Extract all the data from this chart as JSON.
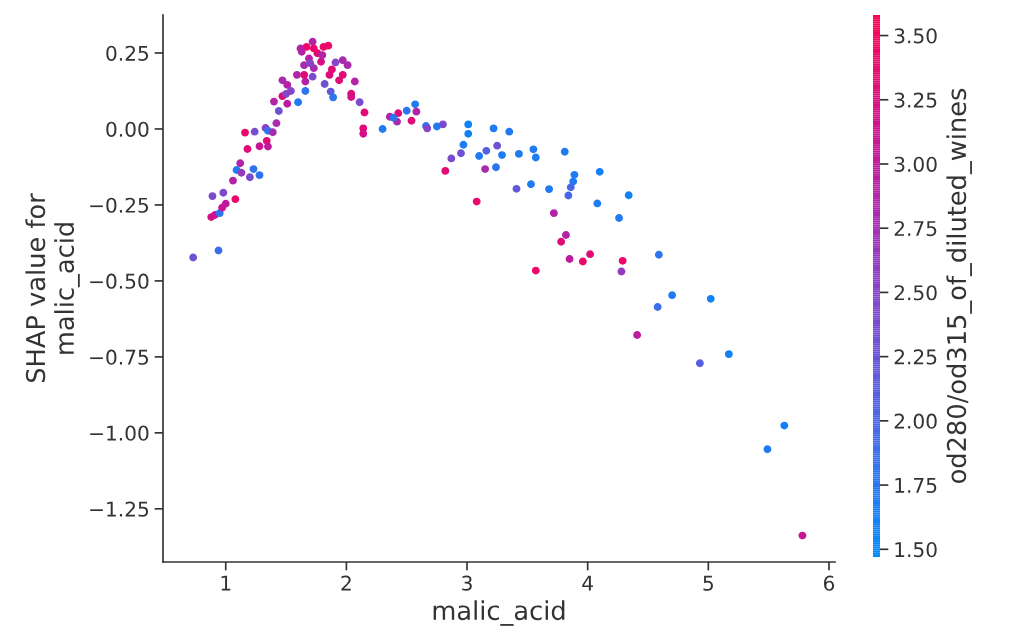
{
  "chart_data": {
    "type": "scatter",
    "xlabel": "malic_acid",
    "ylabel": "SHAP value for\nmalic_acid",
    "clabel": "od280/od315_of_diluted_wines",
    "x": [
      0.73,
      0.94,
      0.88,
      0.91,
      0.95,
      0.97,
      1.0,
      1.08,
      0.89,
      0.98,
      1.06,
      1.09,
      1.12,
      1.13,
      1.2,
      1.23,
      1.28,
      1.18,
      1.16,
      1.24,
      1.28,
      1.33,
      1.35,
      1.34,
      1.35,
      1.39,
      1.42,
      1.44,
      1.4,
      1.47,
      1.51,
      1.5,
      1.6,
      1.47,
      1.51,
      1.54,
      1.59,
      1.66,
      1.66,
      1.72,
      1.65,
      1.65,
      1.62,
      1.67,
      1.72,
      1.69,
      1.76,
      1.81,
      1.85,
      1.79,
      1.73,
      1.82,
      1.87,
      1.89,
      1.86,
      1.88,
      1.91,
      1.97,
      2.01,
      1.97,
      1.94,
      2.07,
      2.04,
      2.04,
      2.11,
      2.15,
      2.14,
      2.14,
      2.3,
      2.36,
      2.43,
      2.42,
      2.39,
      1.63,
      1.73,
      1.8,
      1.7,
      2.5,
      2.57,
      2.58,
      2.54,
      2.66,
      2.67,
      2.75,
      2.8,
      3.01,
      3.01,
      2.97,
      2.95,
      2.87,
      2.82,
      3.1,
      3.16,
      3.25,
      3.29,
      3.15,
      3.24,
      3.22,
      3.35,
      3.08,
      3.43,
      3.41,
      3.55,
      3.57,
      3.53,
      3.68,
      3.72,
      3.81,
      3.82,
      3.78,
      3.85,
      3.89,
      3.88,
      3.86,
      3.84,
      3.96,
      4.02,
      3.57,
      4.1,
      4.08,
      4.34,
      4.26,
      4.29,
      4.28,
      4.59,
      4.7,
      4.58,
      5.02,
      4.41,
      5.17,
      4.93,
      5.63,
      5.49,
      5.78
    ],
    "values": [
      -0.423,
      -0.4,
      -0.29,
      -0.283,
      -0.277,
      -0.259,
      -0.246,
      -0.231,
      -0.221,
      -0.21,
      -0.17,
      -0.135,
      -0.113,
      -0.144,
      -0.159,
      -0.132,
      -0.152,
      -0.066,
      -0.012,
      -0.009,
      -0.057,
      0.003,
      -0.006,
      -0.039,
      -0.058,
      -0.011,
      0.019,
      0.059,
      0.09,
      0.108,
      0.083,
      0.115,
      0.088,
      0.16,
      0.145,
      0.125,
      0.178,
      0.125,
      0.156,
      0.172,
      0.178,
      0.21,
      0.265,
      0.27,
      0.287,
      0.232,
      0.249,
      0.27,
      0.274,
      0.221,
      0.2,
      0.148,
      0.123,
      0.104,
      0.178,
      0.196,
      0.219,
      0.226,
      0.21,
      0.178,
      0.16,
      0.156,
      0.116,
      0.105,
      0.088,
      0.054,
      0.002,
      -0.016,
      0.0,
      0.04,
      0.052,
      0.024,
      0.037,
      0.254,
      0.265,
      0.243,
      0.216,
      0.06,
      0.081,
      0.057,
      0.027,
      0.01,
      0.002,
      0.008,
      0.015,
      0.015,
      -0.016,
      -0.052,
      -0.08,
      -0.097,
      -0.138,
      -0.089,
      -0.072,
      -0.055,
      -0.086,
      -0.132,
      -0.126,
      0.002,
      -0.009,
      -0.239,
      -0.082,
      -0.197,
      -0.067,
      -0.094,
      -0.182,
      -0.198,
      -0.277,
      -0.075,
      -0.349,
      -0.371,
      -0.428,
      -0.151,
      -0.173,
      -0.192,
      -0.219,
      -0.436,
      -0.412,
      -0.466,
      -0.141,
      -0.245,
      -0.218,
      -0.293,
      -0.434,
      -0.469,
      -0.414,
      -0.547,
      -0.586,
      -0.559,
      -0.678,
      -0.741,
      -0.771,
      -0.976,
      -1.054,
      -1.338
    ],
    "cvalues": [
      2.3,
      1.9,
      3.2,
      3.1,
      1.8,
      3.1,
      3.0,
      3.4,
      2.4,
      2.4,
      2.9,
      1.7,
      2.9,
      2.6,
      2.4,
      1.8,
      1.8,
      3.3,
      3.4,
      2.4,
      3.1,
      2.6,
      1.8,
      3.3,
      3.0,
      2.8,
      2.8,
      2.3,
      2.9,
      3.3,
      3.0,
      2.5,
      1.7,
      2.8,
      2.9,
      2.5,
      2.9,
      1.8,
      2.9,
      2.4,
      3.3,
      2.8,
      2.9,
      3.4,
      2.9,
      2.9,
      3.3,
      3.4,
      3.4,
      3.2,
      2.8,
      2.3,
      2.2,
      1.8,
      3.3,
      3.3,
      2.5,
      2.8,
      2.8,
      3.3,
      3.3,
      2.9,
      3.3,
      3.2,
      2.4,
      3.3,
      3.3,
      3.2,
      1.7,
      2.9,
      3.3,
      2.8,
      1.8,
      2.9,
      3.4,
      2.9,
      2.5,
      1.8,
      1.7,
      2.9,
      3.3,
      1.8,
      2.5,
      1.7,
      2.4,
      1.6,
      1.6,
      1.7,
      2.3,
      2.4,
      3.3,
      1.7,
      2.1,
      2.3,
      1.7,
      2.8,
      1.8,
      1.7,
      1.7,
      3.4,
      1.7,
      2.2,
      1.7,
      1.7,
      1.7,
      1.7,
      2.9,
      1.7,
      2.9,
      3.3,
      3.0,
      1.7,
      1.7,
      2.0,
      2.0,
      3.4,
      3.3,
      3.4,
      1.6,
      1.7,
      1.6,
      1.7,
      3.4,
      2.6,
      1.8,
      1.7,
      1.9,
      1.6,
      3.0,
      1.6,
      2.1,
      1.6,
      1.7,
      3.1
    ],
    "clim": [
      1.47,
      3.58
    ],
    "cticks": [
      {
        "value": 1.5,
        "label": "1.50"
      },
      {
        "value": 1.75,
        "label": "1.75"
      },
      {
        "value": 2.0,
        "label": "2.00"
      },
      {
        "value": 2.25,
        "label": "2.25"
      },
      {
        "value": 2.5,
        "label": "2.50"
      },
      {
        "value": 2.75,
        "label": "2.75"
      },
      {
        "value": 3.0,
        "label": "3.00"
      },
      {
        "value": 3.25,
        "label": "3.25"
      },
      {
        "value": 3.5,
        "label": "3.50"
      }
    ],
    "xlim": [
      0.48,
      6.05
    ],
    "xticks": [
      1,
      2,
      3,
      4,
      5,
      6
    ],
    "ylim": [
      -1.425,
      0.375
    ],
    "yticks": [
      {
        "value": 0.25,
        "label": "0.25"
      },
      {
        "value": 0.0,
        "label": "0.00"
      },
      {
        "value": -0.25,
        "label": "−0.25"
      },
      {
        "value": -0.5,
        "label": "−0.50"
      },
      {
        "value": -0.75,
        "label": "−0.75"
      },
      {
        "value": -1.0,
        "label": "−1.00"
      },
      {
        "value": -1.25,
        "label": "−1.25"
      }
    ],
    "marker": "circle"
  }
}
